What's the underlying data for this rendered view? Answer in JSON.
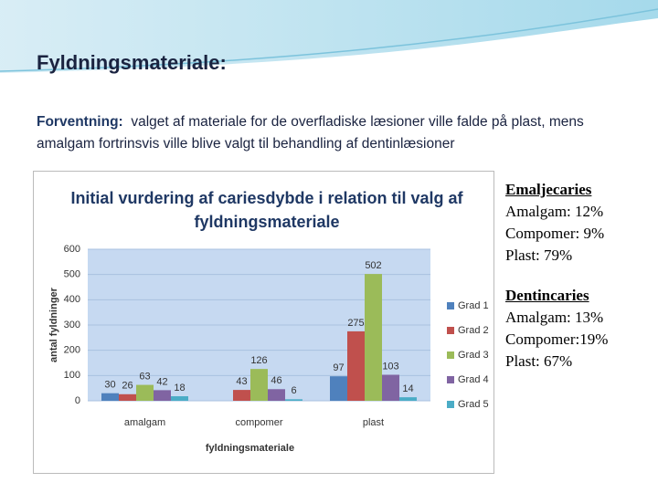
{
  "slide": {
    "heading": "Fyldningsmateriale:",
    "lead_label": "Forventning:",
    "lead_text": "valget af materiale for de overfladiske læsioner ville falde på plast, mens amalgam fortrinsvis ville blive valgt til behandling af dentinlæsioner",
    "notes": [
      {
        "heading": "Emaljecaries",
        "lines": [
          "Amalgam: 12%",
          "Compomer: 9%",
          "Plast: 79%"
        ]
      },
      {
        "heading": "Dentincaries",
        "lines": [
          "Amalgam: 13%",
          "Compomer:19%",
          "Plast: 67%"
        ]
      }
    ]
  },
  "chart_data": {
    "type": "bar",
    "title": "Initial vurdering af cariesdybde i relation til valg af fyldningsmateriale",
    "x_label": "fyldningsmateriale",
    "y_label": "antal fyldninger",
    "categories": [
      "amalgam",
      "compomer",
      "plast"
    ],
    "series": [
      {
        "name": "Grad 1",
        "color": "#4f81bd",
        "values": [
          30,
          null,
          97
        ]
      },
      {
        "name": "Grad 2",
        "color": "#c0504d",
        "values": [
          26,
          43,
          275
        ]
      },
      {
        "name": "Grad 3",
        "color": "#9bbb59",
        "values": [
          63,
          126,
          502
        ]
      },
      {
        "name": "Grad 4",
        "color": "#8064a2",
        "values": [
          42,
          46,
          103
        ]
      },
      {
        "name": "Grad 5",
        "color": "#4bacc6",
        "values": [
          18,
          6,
          14
        ]
      }
    ],
    "ylim": [
      0,
      600
    ],
    "yticks": [
      0,
      100,
      200,
      300,
      400,
      500,
      600
    ],
    "grid": true,
    "legend": "right"
  }
}
